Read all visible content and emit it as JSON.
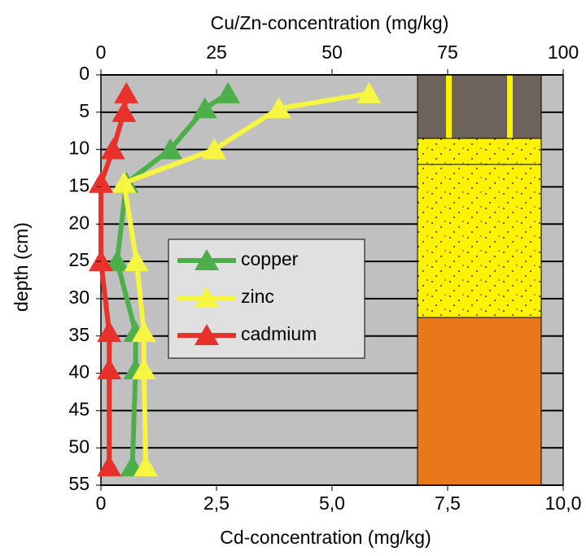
{
  "chart_data": {
    "type": "line",
    "title": "Cu/Zn-concentration  (mg/kg)",
    "xlabel": "Cd-concentration (mg/kg)",
    "ylabel": "depth (cm)",
    "xlim": [
      0,
      10
    ],
    "xticks": [
      0,
      {
        "value": 2.5,
        "label": "2,5"
      },
      {
        "value": 5,
        "label": "5,0"
      },
      {
        "value": 7.5,
        "label": "7,5"
      },
      {
        "value": 10,
        "label": "10,0"
      }
    ],
    "x2lim": [
      0,
      100
    ],
    "x2ticks": [
      0,
      25,
      50,
      75,
      100
    ],
    "ylim": [
      0,
      55
    ],
    "yticks": [
      0,
      5,
      10,
      15,
      20,
      25,
      30,
      35,
      40,
      45,
      50,
      55
    ],
    "grid": true,
    "series": [
      {
        "name": "copper",
        "color": "#4daf4a",
        "axis": "x2",
        "values": [
          27.5,
          22.5,
          15,
          5.5,
          3.5,
          7.5,
          7.5,
          6.8
        ],
        "depths": [
          2.5,
          4.5,
          10,
          14.5,
          25,
          34.5,
          39.5,
          52.5
        ]
      },
      {
        "name": "zinc",
        "color": "#f5f542",
        "axis": "x2",
        "values": [
          58,
          38.5,
          24.5,
          5,
          7.7,
          9.3,
          9.3,
          9.7
        ],
        "depths": [
          2.5,
          4.5,
          10,
          14.5,
          25,
          34.5,
          39.5,
          52.5
        ]
      },
      {
        "name": "cadmium",
        "color": "#e8312a",
        "values": [
          0.55,
          0.5,
          0.26,
          0,
          0,
          0.18,
          0.18,
          0.18
        ],
        "depths": [
          2.5,
          5,
          10,
          14.5,
          25,
          34.5,
          39.5,
          52.5
        ]
      }
    ]
  }
}
